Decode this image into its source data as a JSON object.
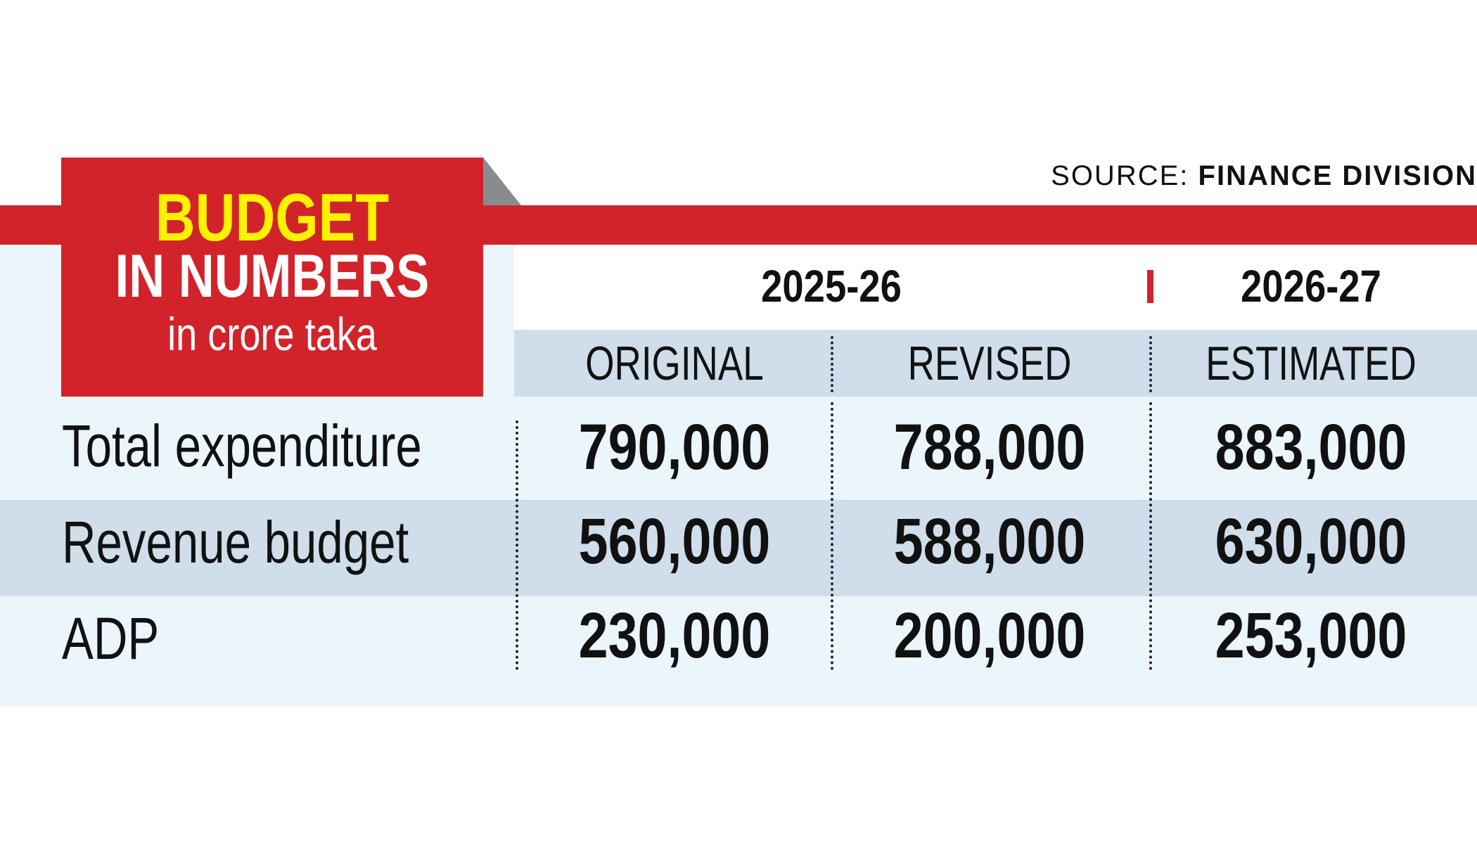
{
  "title": {
    "line1": "BUDGET",
    "line2": "IN NUMBERS",
    "unit": "in crore taka"
  },
  "source": {
    "label": "SOURCE:",
    "value": "FINANCE DIVISION"
  },
  "years": [
    "2025-26",
    "2026-27"
  ],
  "columns": [
    "ORIGINAL",
    "REVISED",
    "ESTIMATED"
  ],
  "rows": [
    {
      "label": "Total expenditure",
      "values": [
        "790,000",
        "788,000",
        "883,000"
      ]
    },
    {
      "label": "Revenue budget",
      "values": [
        "560,000",
        "588,000",
        "630,000"
      ]
    },
    {
      "label": "ADP",
      "values": [
        "230,000",
        "200,000",
        "253,000"
      ]
    }
  ],
  "colors": {
    "red": "#d2232a",
    "yellow": "#fff200",
    "light_blue": "#ebf5fc",
    "row_blue": "#cfdeea"
  },
  "chart_data": {
    "type": "table",
    "title": "BUDGET IN NUMBERS",
    "subtitle": "in crore taka",
    "column_groups": [
      {
        "label": "2025-26",
        "columns": [
          "ORIGINAL",
          "REVISED"
        ]
      },
      {
        "label": "2026-27",
        "columns": [
          "ESTIMATED"
        ]
      }
    ],
    "columns": [
      "ORIGINAL",
      "REVISED",
      "ESTIMATED"
    ],
    "rows": [
      {
        "label": "Total expenditure",
        "values": [
          790000,
          788000,
          883000
        ]
      },
      {
        "label": "Revenue budget",
        "values": [
          560000,
          588000,
          630000
        ]
      },
      {
        "label": "ADP",
        "values": [
          230000,
          200000,
          253000
        ]
      }
    ]
  }
}
